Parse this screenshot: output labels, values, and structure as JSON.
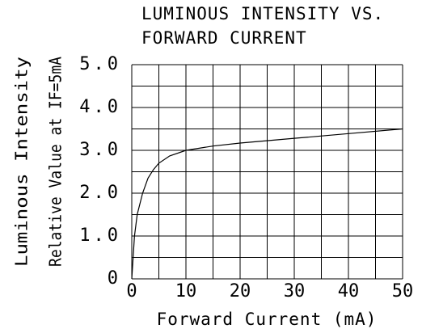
{
  "chart_data": {
    "type": "line",
    "title": [
      "LUMINOUS INTENSITY VS.",
      "FORWARD CURRENT"
    ],
    "xlabel": "Forward Current (mA)",
    "ylabel": [
      "Luminous Intensity",
      "Relative Value at IF=5mA"
    ],
    "x": [
      0,
      0.5,
      1,
      2,
      3,
      4,
      5,
      7,
      10,
      15,
      20,
      30,
      40,
      50
    ],
    "series": [
      {
        "name": "Luminous Intensity",
        "color": "#000000",
        "values": [
          0,
          1.0,
          1.5,
          2.0,
          2.35,
          2.55,
          2.7,
          2.87,
          3.0,
          3.1,
          3.17,
          3.28,
          3.39,
          3.5
        ]
      }
    ],
    "xlim": [
      0,
      50
    ],
    "xticks": [
      0,
      10,
      20,
      30,
      40,
      50
    ],
    "x_minor_ticks": [
      5,
      15,
      25,
      35,
      45
    ],
    "ylim": [
      0,
      5
    ],
    "yticks": [
      0,
      {
        "value": 1,
        "label": "1.0"
      },
      {
        "value": 2,
        "label": "2.0"
      },
      {
        "value": 3,
        "label": "3.0"
      },
      {
        "value": 4,
        "label": "4.0"
      },
      {
        "value": 5,
        "label": "5.0"
      }
    ],
    "y_minor_ticks": [
      0.5,
      1.5,
      2.5,
      3.5,
      4.5
    ],
    "grid": true
  }
}
